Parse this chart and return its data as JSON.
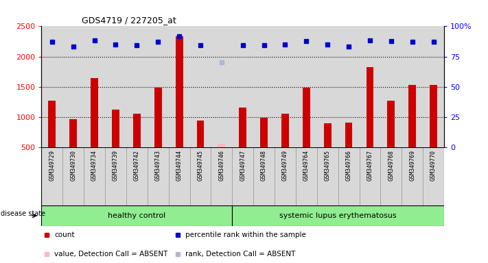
{
  "title": "GDS4719 / 227205_at",
  "samples": [
    "GSM349729",
    "GSM349730",
    "GSM349734",
    "GSM349739",
    "GSM349742",
    "GSM349743",
    "GSM349744",
    "GSM349745",
    "GSM349746",
    "GSM349747",
    "GSM349748",
    "GSM349749",
    "GSM349764",
    "GSM349765",
    "GSM349766",
    "GSM349767",
    "GSM349768",
    "GSM349769",
    "GSM349770"
  ],
  "counts": [
    1270,
    960,
    1640,
    1120,
    1050,
    1490,
    2330,
    940,
    null,
    1160,
    990,
    1060,
    1490,
    900,
    910,
    1830,
    1270,
    1530,
    1530
  ],
  "absent_counts": [
    null,
    null,
    null,
    null,
    null,
    null,
    null,
    null,
    560,
    null,
    null,
    null,
    null,
    null,
    null,
    null,
    null,
    null,
    null
  ],
  "percentile_ranks": [
    2240,
    2160,
    2270,
    2200,
    2190,
    2240,
    2330,
    2190,
    null,
    2190,
    2190,
    2200,
    2250,
    2200,
    2160,
    2270,
    2250,
    2240,
    2240
  ],
  "absent_ranks": [
    null,
    null,
    null,
    null,
    null,
    null,
    null,
    null,
    1910,
    null,
    null,
    null,
    null,
    null,
    null,
    null,
    null,
    null,
    null
  ],
  "healthy_control_count": 9,
  "healthy_label": "healthy control",
  "disease_label": "systemic lupus erythematosus",
  "disease_state_label": "disease state",
  "ylim_left": [
    500,
    2500
  ],
  "ylim_right": [
    0,
    100
  ],
  "yticks_left": [
    500,
    1000,
    1500,
    2000,
    2500
  ],
  "yticks_right": [
    0,
    25,
    50,
    75,
    100
  ],
  "bar_color": "#CC0000",
  "absent_bar_color": "#FFB6C1",
  "dot_color": "#0000CC",
  "absent_dot_color": "#B0B8D8",
  "bg_color_healthy": "#90EE90",
  "bg_color_disease": "#90EE90",
  "sample_bg_color": "#D8D8D8",
  "legend_items": [
    {
      "label": "count",
      "color": "#CC0000"
    },
    {
      "label": "percentile rank within the sample",
      "color": "#0000CC"
    },
    {
      "label": "value, Detection Call = ABSENT",
      "color": "#FFB6C1"
    },
    {
      "label": "rank, Detection Call = ABSENT",
      "color": "#B0B8D8"
    }
  ]
}
